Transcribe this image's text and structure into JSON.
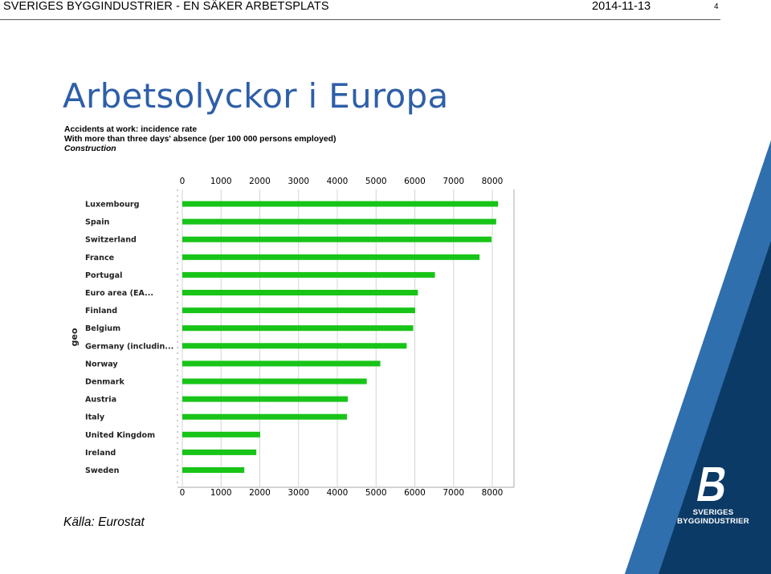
{
  "header": {
    "left_text": "SVERIGES BYGGINDUSTRIER - EN SÄKER ARBETSPLATS",
    "date": "2014-11-13",
    "page_number": "4"
  },
  "title": "Arbetsolyckor i Europa",
  "source": "Källa: Eurostat",
  "logo": {
    "line1": "SVERIGES",
    "line2": "BYGGINDUSTRIER",
    "colors": {
      "dark": "#0b3a66",
      "light": "#2f6fae"
    }
  },
  "chart_data": {
    "type": "bar",
    "orientation": "horizontal",
    "title": "Accidents at work: incidence rate",
    "subtitle": "With more than three days' absence (per 100 000 persons employed)",
    "subtitle2": "Construction",
    "ylabel": "geo",
    "xlim": [
      0,
      8000
    ],
    "xticks": [
      0,
      1000,
      2000,
      3000,
      4000,
      5000,
      6000,
      7000,
      8000
    ],
    "bar_color": "#18c418",
    "grid": true,
    "categories": [
      "Luxembourg",
      "Spain",
      "Switzerland",
      "France",
      "Portugal",
      "Euro area (EA...",
      "Finland",
      "Belgium",
      "Germany (includin...",
      "Norway",
      "Denmark",
      "Austria",
      "Italy",
      "United Kingdom",
      "Ireland",
      "Sweden"
    ],
    "values": [
      8150,
      8100,
      7980,
      7670,
      6520,
      6080,
      6010,
      5960,
      5790,
      5110,
      4760,
      4270,
      4250,
      2010,
      1910,
      1600
    ]
  }
}
